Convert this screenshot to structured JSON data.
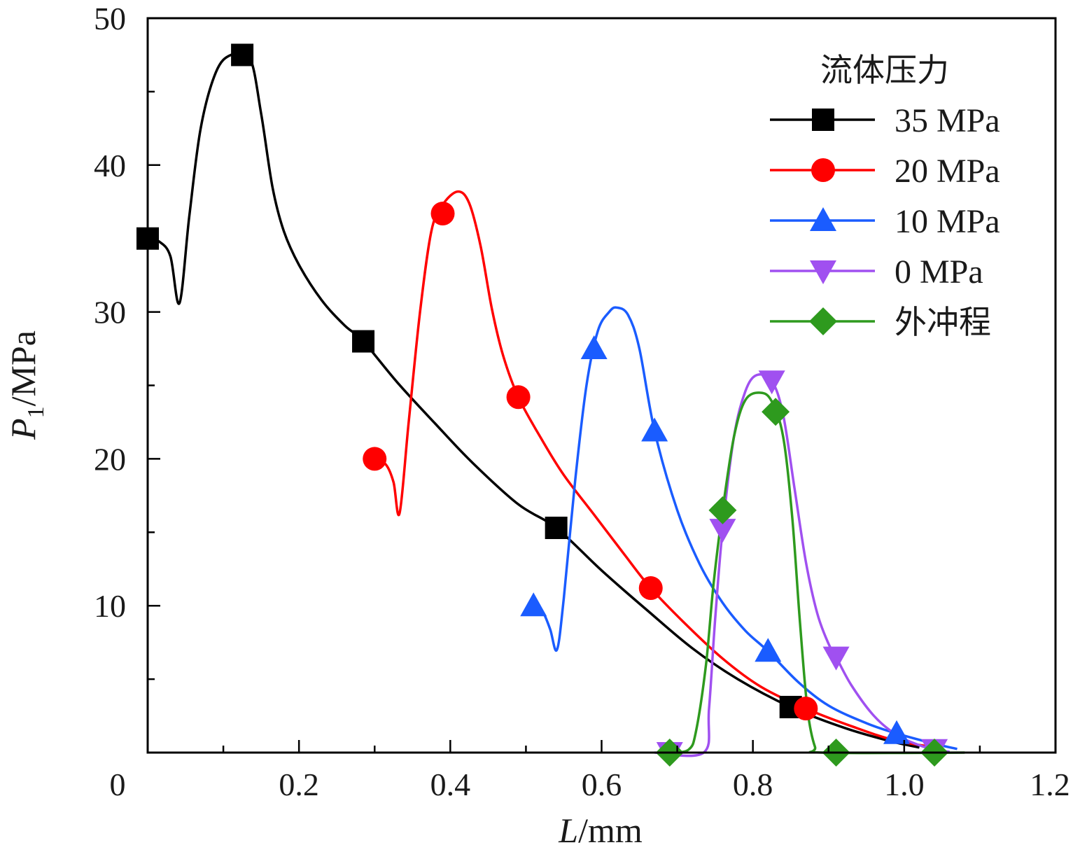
{
  "chart_data": {
    "type": "line",
    "title": "",
    "xlabel_italic": "L",
    "xlabel_unit": "/mm",
    "ylabel_italic": "P",
    "ylabel_sub": "1",
    "ylabel_unit": "/MPa",
    "xlim": [
      0,
      1.2
    ],
    "ylim": [
      0,
      50
    ],
    "x_ticks": [
      "0",
      "0.2",
      "0.4",
      "0.6",
      "0.8",
      "1.0",
      "1.2"
    ],
    "y_ticks": [
      "10",
      "20",
      "30",
      "40",
      "50"
    ],
    "legend_title": "流体压力",
    "series": [
      {
        "name": "35 MPa",
        "color": "#000000",
        "marker": "square",
        "markers": [
          [
            0.0,
            35.0
          ],
          [
            0.125,
            47.5
          ],
          [
            0.285,
            28.0
          ],
          [
            0.54,
            15.3
          ],
          [
            0.85,
            3.1
          ]
        ],
        "curve": [
          [
            0.0,
            35.0
          ],
          [
            0.015,
            34.8
          ],
          [
            0.03,
            33.8
          ],
          [
            0.042,
            30.6
          ],
          [
            0.055,
            36.5
          ],
          [
            0.07,
            42.5
          ],
          [
            0.09,
            46.3
          ],
          [
            0.11,
            47.5
          ],
          [
            0.135,
            47.3
          ],
          [
            0.15,
            43.5
          ],
          [
            0.165,
            38.5
          ],
          [
            0.18,
            35.5
          ],
          [
            0.2,
            33.2
          ],
          [
            0.23,
            30.8
          ],
          [
            0.26,
            29.1
          ],
          [
            0.285,
            28.0
          ],
          [
            0.33,
            25.2
          ],
          [
            0.38,
            22.4
          ],
          [
            0.43,
            19.7
          ],
          [
            0.49,
            16.9
          ],
          [
            0.54,
            15.3
          ],
          [
            0.6,
            12.4
          ],
          [
            0.66,
            9.7
          ],
          [
            0.72,
            7.1
          ],
          [
            0.78,
            5.0
          ],
          [
            0.85,
            3.1
          ],
          [
            0.92,
            1.7
          ],
          [
            0.98,
            0.8
          ],
          [
            1.02,
            0.35
          ]
        ]
      },
      {
        "name": "20 MPa",
        "color": "#ff0000",
        "marker": "circle",
        "markers": [
          [
            0.3,
            20.0
          ],
          [
            0.39,
            36.7
          ],
          [
            0.49,
            24.2
          ],
          [
            0.665,
            11.2
          ],
          [
            0.87,
            3.0
          ]
        ],
        "curve": [
          [
            0.3,
            20.0
          ],
          [
            0.315,
            19.6
          ],
          [
            0.325,
            18.4
          ],
          [
            0.333,
            16.3
          ],
          [
            0.345,
            22.5
          ],
          [
            0.36,
            30.0
          ],
          [
            0.375,
            35.5
          ],
          [
            0.39,
            37.3
          ],
          [
            0.41,
            38.2
          ],
          [
            0.425,
            37.4
          ],
          [
            0.44,
            34.5
          ],
          [
            0.455,
            30.2
          ],
          [
            0.47,
            27.0
          ],
          [
            0.49,
            24.2
          ],
          [
            0.52,
            21.4
          ],
          [
            0.55,
            18.9
          ],
          [
            0.59,
            16.2
          ],
          [
            0.63,
            13.5
          ],
          [
            0.665,
            11.2
          ],
          [
            0.71,
            8.8
          ],
          [
            0.76,
            6.4
          ],
          [
            0.81,
            4.5
          ],
          [
            0.87,
            3.0
          ],
          [
            0.93,
            1.8
          ],
          [
            0.99,
            0.8
          ],
          [
            1.05,
            0.3
          ]
        ]
      },
      {
        "name": "10 MPa",
        "color": "#1a5cff",
        "marker": "triangle-up",
        "markers": [
          [
            0.51,
            10.0
          ],
          [
            0.59,
            27.5
          ],
          [
            0.67,
            21.9
          ],
          [
            0.82,
            6.9
          ],
          [
            0.99,
            1.3
          ]
        ],
        "curve": [
          [
            0.51,
            10.0
          ],
          [
            0.522,
            9.6
          ],
          [
            0.532,
            8.4
          ],
          [
            0.541,
            7.0
          ],
          [
            0.55,
            10.5
          ],
          [
            0.565,
            18.5
          ],
          [
            0.58,
            25.0
          ],
          [
            0.595,
            28.7
          ],
          [
            0.61,
            30.0
          ],
          [
            0.62,
            30.3
          ],
          [
            0.635,
            29.8
          ],
          [
            0.65,
            27.5
          ],
          [
            0.67,
            21.9
          ],
          [
            0.7,
            16.5
          ],
          [
            0.73,
            12.8
          ],
          [
            0.76,
            10.2
          ],
          [
            0.79,
            8.3
          ],
          [
            0.82,
            6.9
          ],
          [
            0.86,
            4.8
          ],
          [
            0.9,
            3.2
          ],
          [
            0.95,
            2.0
          ],
          [
            0.99,
            1.3
          ],
          [
            1.04,
            0.6
          ],
          [
            1.07,
            0.25
          ]
        ]
      },
      {
        "name": "0 MPa",
        "color": "#a050f0",
        "marker": "triangle-down",
        "markers": [
          [
            0.69,
            0.0
          ],
          [
            0.76,
            15.2
          ],
          [
            0.825,
            25.3
          ],
          [
            0.91,
            6.5
          ],
          [
            1.04,
            0.2
          ]
        ],
        "curve": [
          [
            0.67,
            0.0
          ],
          [
            0.735,
            0.0
          ],
          [
            0.742,
            3.0
          ],
          [
            0.75,
            9.0
          ],
          [
            0.76,
            15.2
          ],
          [
            0.775,
            21.5
          ],
          [
            0.79,
            24.6
          ],
          [
            0.805,
            25.7
          ],
          [
            0.825,
            25.3
          ],
          [
            0.84,
            23.0
          ],
          [
            0.855,
            18.0
          ],
          [
            0.87,
            13.0
          ],
          [
            0.885,
            9.5
          ],
          [
            0.9,
            7.4
          ],
          [
            0.91,
            6.5
          ],
          [
            0.93,
            4.6
          ],
          [
            0.96,
            2.5
          ],
          [
            0.99,
            1.2
          ],
          [
            1.02,
            0.5
          ],
          [
            1.04,
            0.2
          ],
          [
            1.06,
            0.05
          ]
        ]
      },
      {
        "name": "外冲程",
        "color": "#2e9a1e",
        "marker": "diamond",
        "markers": [
          [
            0.69,
            0.0
          ],
          [
            0.76,
            16.5
          ],
          [
            0.83,
            23.2
          ],
          [
            0.91,
            0.0
          ],
          [
            1.04,
            0.0
          ]
        ],
        "curve": [
          [
            0.69,
            0.0
          ],
          [
            0.715,
            0.2
          ],
          [
            0.725,
            1.5
          ],
          [
            0.738,
            6.0
          ],
          [
            0.748,
            11.5
          ],
          [
            0.76,
            16.5
          ],
          [
            0.775,
            21.5
          ],
          [
            0.79,
            24.0
          ],
          [
            0.81,
            24.5
          ],
          [
            0.825,
            23.9
          ],
          [
            0.84,
            21.5
          ],
          [
            0.852,
            16.0
          ],
          [
            0.862,
            9.0
          ],
          [
            0.872,
            3.0
          ],
          [
            0.882,
            0.4
          ],
          [
            0.892,
            0.0
          ],
          [
            1.08,
            0.0
          ]
        ]
      }
    ]
  }
}
